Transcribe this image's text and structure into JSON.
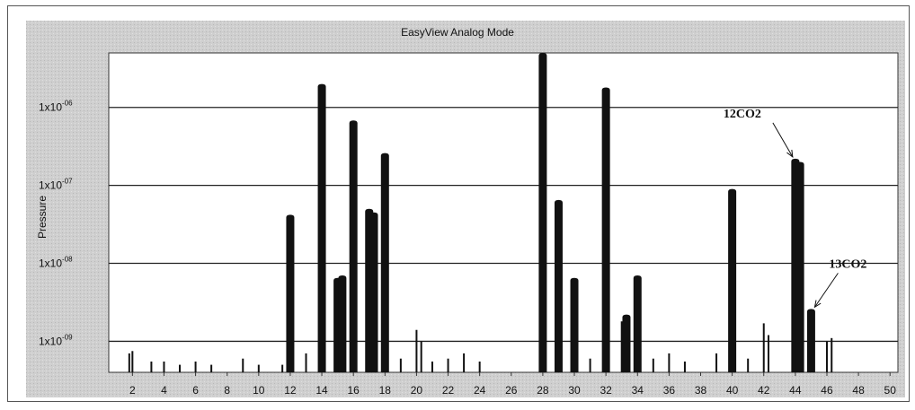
{
  "chart_data": {
    "type": "bar",
    "title": "EasyView Analog Mode",
    "ylabel": "Pressure",
    "xlabel": "",
    "yscale": "log",
    "ylim": [
      4e-10,
      5e-06
    ],
    "xlim": [
      0.5,
      50.5
    ],
    "grid": "horizontal",
    "x_ticks": [
      "2",
      "4",
      "6",
      "8",
      "10",
      "12",
      "14",
      "16",
      "18",
      "20",
      "22",
      "24",
      "26",
      "28",
      "30",
      "32",
      "34",
      "36",
      "38",
      "40",
      "42",
      "44",
      "46",
      "48",
      "50"
    ],
    "y_ticks": [
      {
        "label": "1x10-06",
        "value": 1e-06
      },
      {
        "label": "1x10-07",
        "value": 1e-07
      },
      {
        "label": "1x10-08",
        "value": 1e-08
      },
      {
        "label": "1x10-09",
        "value": 1e-09
      }
    ],
    "series": [
      {
        "mass": [
          1.8,
          2,
          3.2,
          4,
          5,
          6,
          7,
          9,
          10,
          11.5,
          12,
          13,
          14,
          15,
          15.3,
          16,
          17,
          17.3,
          18,
          19,
          20,
          20.3,
          21,
          22,
          23,
          24,
          28,
          29,
          30,
          31,
          32,
          33,
          33.3,
          34,
          35,
          36,
          37,
          39,
          40,
          41,
          42,
          42.3,
          44,
          44.3,
          45,
          46,
          46.3
        ],
        "values": [
          7e-10,
          7.5e-10,
          5.5e-10,
          5.5e-10,
          5e-10,
          5.5e-10,
          5e-10,
          6e-10,
          5e-10,
          5e-10,
          4.2e-08,
          7e-10,
          2e-06,
          6.5e-09,
          7e-09,
          6.8e-07,
          5e-08,
          4.5e-08,
          2.6e-07,
          6e-10,
          1.4e-09,
          1e-09,
          5.5e-10,
          6e-10,
          7e-10,
          5.5e-10,
          5e-06,
          6.5e-08,
          6.5e-09,
          6e-10,
          1.8e-06,
          1.8e-09,
          2.2e-09,
          7e-09,
          6e-10,
          7e-10,
          5.5e-10,
          7e-10,
          9e-08,
          6e-10,
          1.7e-09,
          1.2e-09,
          2.2e-07,
          2e-07,
          2.6e-09,
          1e-09,
          1.1e-09
        ]
      }
    ],
    "annotations": [
      {
        "text": "12CO2",
        "x": 44,
        "y": 2.2e-07
      },
      {
        "text": "13CO2",
        "x": 45,
        "y": 2.6e-09
      }
    ]
  }
}
